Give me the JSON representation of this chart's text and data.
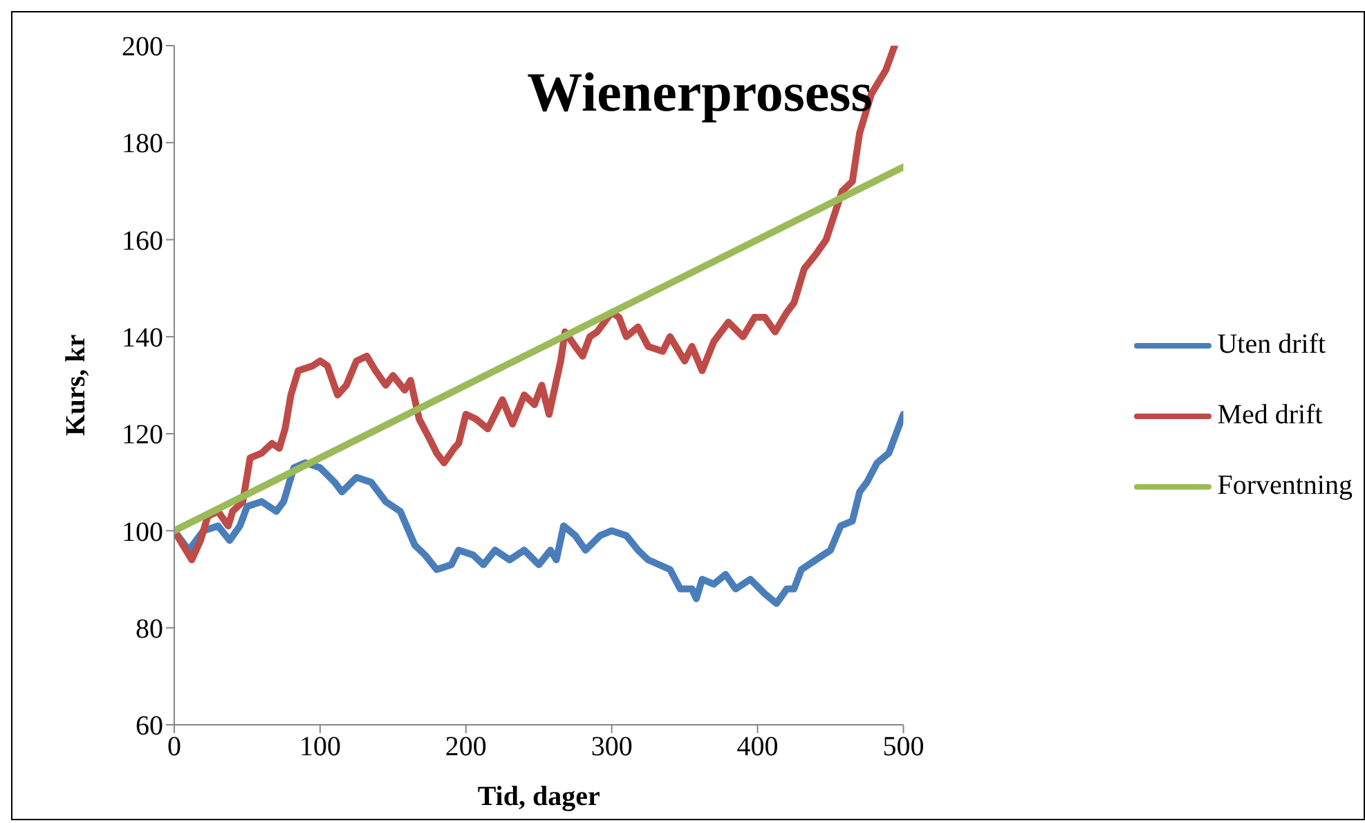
{
  "chart_data": {
    "type": "line",
    "title": "Wienerprosess",
    "xlabel": "Tid, dager",
    "ylabel": "Kurs, kr",
    "xlim": [
      0,
      500
    ],
    "xticks": [
      0,
      100,
      200,
      300,
      400,
      500
    ],
    "ylim": [
      60,
      200
    ],
    "yticks": [
      60,
      80,
      100,
      120,
      140,
      160,
      180,
      200
    ],
    "grid": false,
    "legend": "right",
    "marker": "none",
    "line_style": "solid",
    "series": [
      {
        "name": "Uten drift",
        "color": "#4a7ebb",
        "x": [
          0,
          10,
          20,
          30,
          38,
          45,
          50,
          60,
          70,
          75,
          82,
          90,
          100,
          110,
          115,
          125,
          135,
          145,
          155,
          165,
          172,
          180,
          190,
          195,
          205,
          212,
          220,
          230,
          240,
          250,
          258,
          262,
          267,
          275,
          282,
          292,
          300,
          310,
          318,
          325,
          340,
          347,
          355,
          358,
          362,
          370,
          378,
          385,
          395,
          405,
          413,
          420,
          425,
          430,
          440,
          450,
          457,
          465,
          470,
          475,
          482,
          490,
          495,
          500
        ],
        "values": [
          100,
          96,
          100,
          101,
          98,
          101,
          105,
          106,
          104,
          106,
          113,
          114,
          113,
          110,
          108,
          111,
          110,
          106,
          104,
          97,
          95,
          92,
          93,
          96,
          95,
          93,
          96,
          94,
          96,
          93,
          96,
          94,
          101,
          99,
          96,
          99,
          100,
          99,
          96,
          94,
          92,
          88,
          88,
          86,
          90,
          89,
          91,
          88,
          90,
          87,
          85,
          88,
          88,
          92,
          94,
          96,
          101,
          102,
          108,
          110,
          114,
          116,
          120,
          124
        ]
      },
      {
        "name": "Med drift",
        "color": "#be4b48",
        "x": [
          0,
          8,
          12,
          18,
          23,
          30,
          37,
          40,
          47,
          52,
          60,
          67,
          72,
          76,
          80,
          85,
          95,
          100,
          105,
          112,
          118,
          125,
          132,
          138,
          145,
          150,
          158,
          162,
          168,
          175,
          180,
          185,
          192,
          195,
          200,
          207,
          215,
          225,
          232,
          240,
          247,
          252,
          257,
          265,
          268,
          275,
          280,
          285,
          290,
          295,
          300,
          305,
          310,
          318,
          325,
          335,
          340,
          350,
          355,
          362,
          370,
          380,
          390,
          398,
          405,
          412,
          420,
          425,
          432,
          440,
          447,
          458,
          465,
          470,
          478,
          488,
          494
        ],
        "values": [
          100,
          96,
          94,
          98,
          103,
          104,
          101,
          104,
          106,
          115,
          116,
          118,
          117,
          121,
          128,
          133,
          134,
          135,
          134,
          128,
          130,
          135,
          136,
          133,
          130,
          132,
          129,
          131,
          123,
          119,
          116,
          114,
          117,
          118,
          124,
          123,
          121,
          127,
          122,
          128,
          126,
          130,
          124,
          135,
          141,
          138,
          136,
          140,
          141,
          143,
          145,
          144,
          140,
          142,
          138,
          137,
          140,
          135,
          138,
          133,
          139,
          143,
          140,
          144,
          144,
          141,
          145,
          147,
          154,
          157,
          160,
          170,
          172,
          182,
          190,
          195,
          200
        ]
      },
      {
        "name": "Forventning",
        "color": "#9bbb59",
        "x": [
          0,
          500
        ],
        "values": [
          100,
          175
        ]
      }
    ]
  }
}
